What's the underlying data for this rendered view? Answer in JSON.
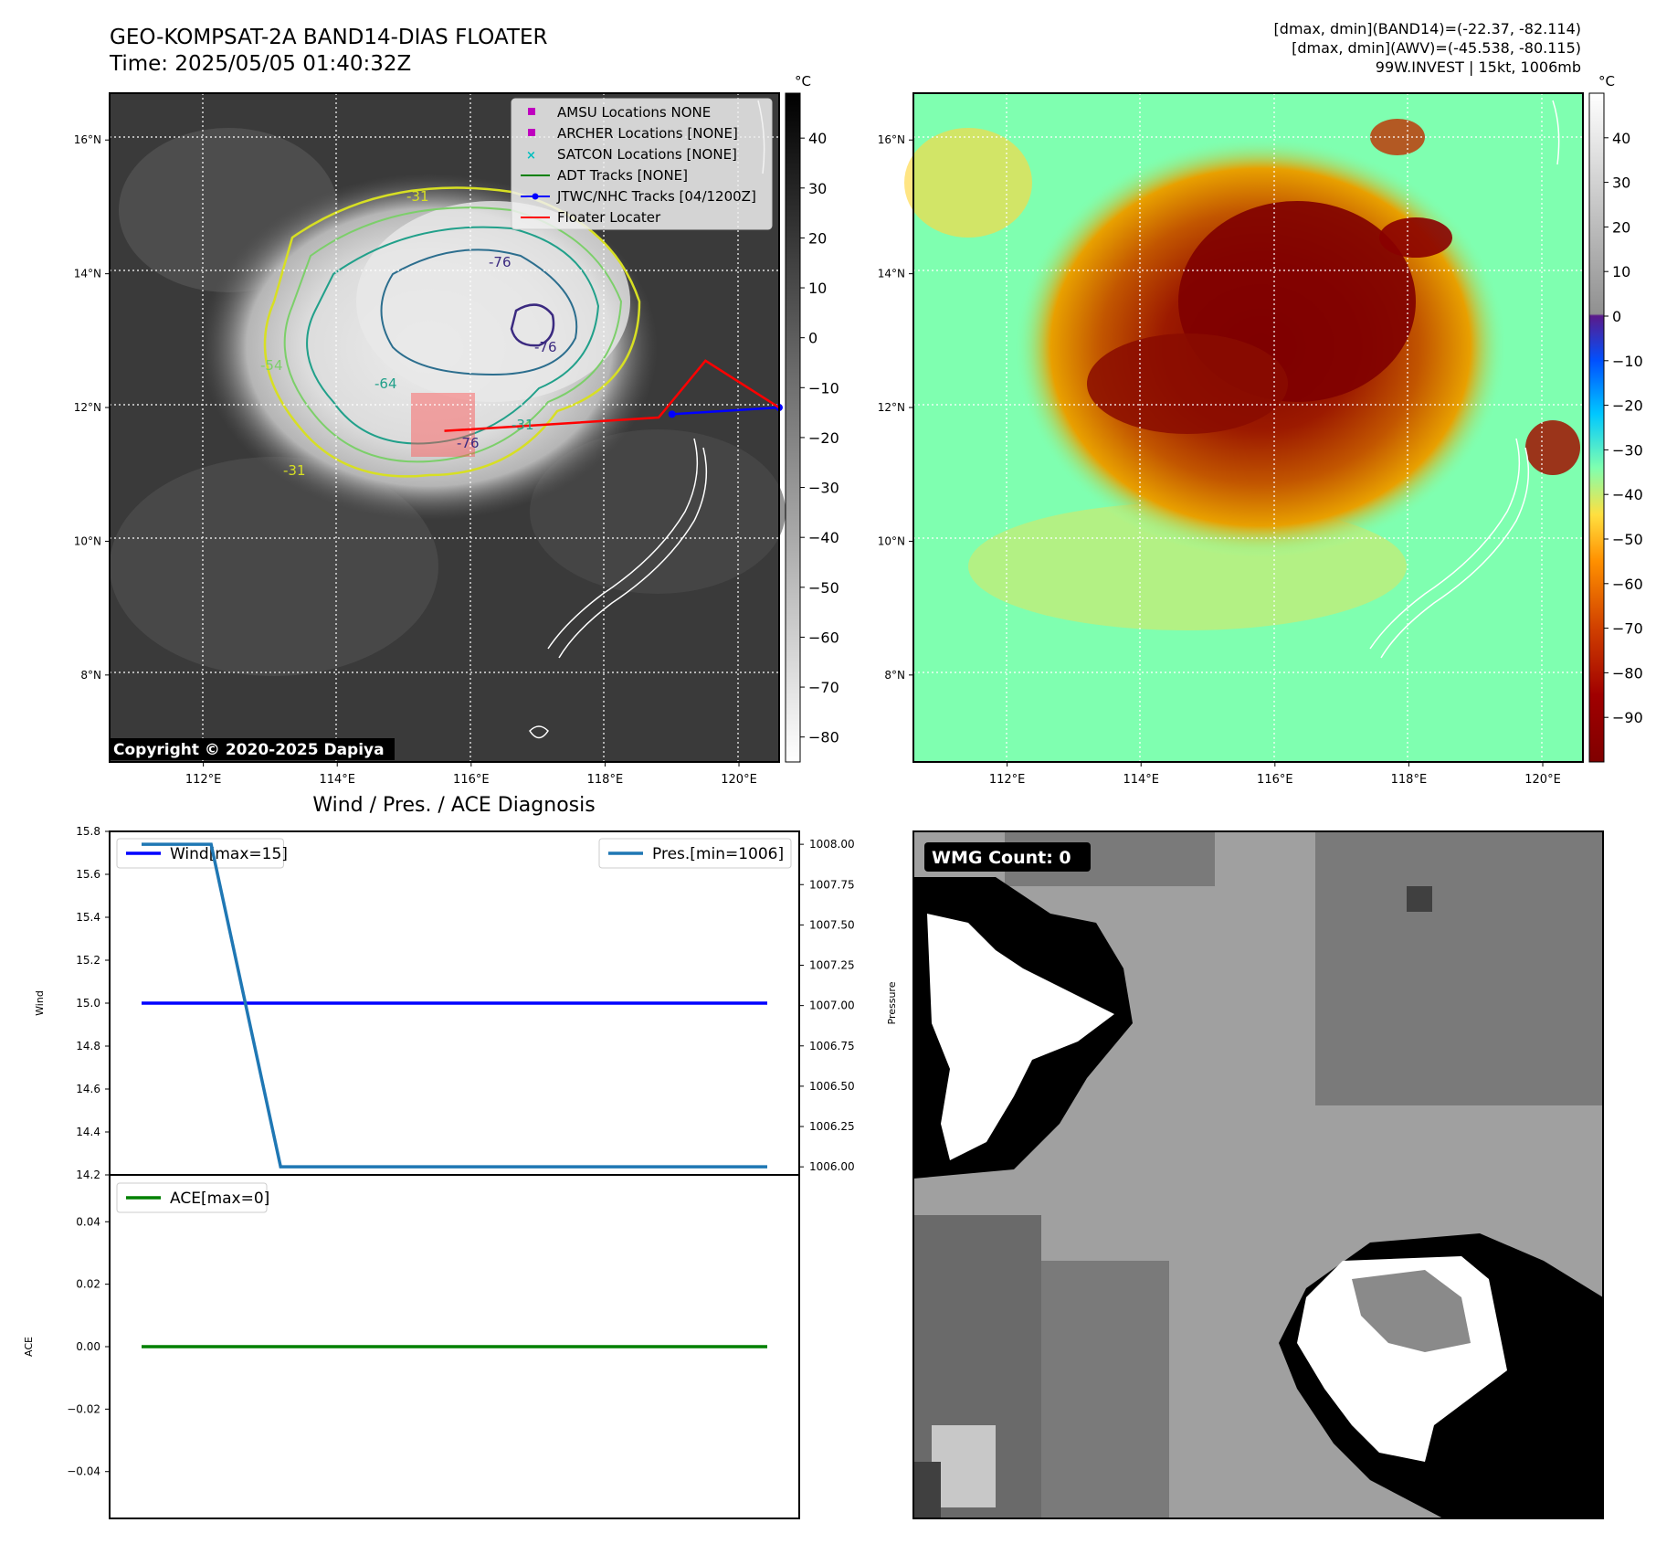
{
  "header": {
    "title": "GEO-KOMPSAT-2A BAND14-DIAS FLOATER",
    "time": "Time: 2025/05/05 01:40:32Z",
    "stats": [
      "[dmax, dmin](BAND14)=(-22.37, -82.114)",
      "[dmax, dmin](AWV)=(-45.538, -80.115)",
      "99W.INVEST | 15kt, 1006mb"
    ]
  },
  "map_panel": {
    "copyright": "Copyright © 2020-2025 Dapiya",
    "lon_ticks": [
      "112°E",
      "114°E",
      "116°E",
      "118°E",
      "120°E"
    ],
    "lat_ticks": [
      "16°N",
      "14°N",
      "12°N",
      "10°N",
      "8°N"
    ],
    "lon_values": [
      112,
      114,
      116,
      118,
      120
    ],
    "lat_values": [
      16,
      14,
      12,
      10,
      8
    ],
    "lon_range": [
      110.6,
      120.6
    ],
    "lat_range": [
      6.7,
      16.7
    ],
    "legend": [
      {
        "label": "AMSU Locations NONE",
        "marker": "square",
        "color": "#bf00bf"
      },
      {
        "label": "ARCHER Locations [NONE]",
        "marker": "square",
        "color": "#bf00bf"
      },
      {
        "label": "SATCON Locations [NONE]",
        "marker": "x",
        "color": "#00bfbf"
      },
      {
        "label": "ADT Tracks [NONE]",
        "marker": "line",
        "color": "#008000"
      },
      {
        "label": "JTWC/NHC Tracks [04/1200Z]",
        "marker": "line-dot",
        "color": "#0000ff"
      },
      {
        "label": "Floater Locater",
        "marker": "line",
        "color": "#ff0000"
      }
    ],
    "contour_labels": [
      "-76",
      "-76",
      "-64",
      "-54",
      "-31",
      "-31",
      "-31",
      "-76"
    ],
    "colorbar": {
      "unit": "°C",
      "ticks": [
        "40",
        "30",
        "20",
        "10",
        "0",
        "−10",
        "−20",
        "−30",
        "−40",
        "−50",
        "−60",
        "−70",
        "−80"
      ],
      "tick_values": [
        40,
        30,
        20,
        10,
        0,
        -10,
        -20,
        -30,
        -40,
        -50,
        -60,
        -70,
        -80
      ],
      "range": [
        -85,
        49
      ]
    },
    "jtwc_track": [
      [
        119.0,
        11.9
      ],
      [
        120.6,
        12.0
      ]
    ],
    "floater_track": [
      [
        115.6,
        11.65
      ],
      [
        118.8,
        11.85
      ],
      [
        119.5,
        12.7
      ],
      [
        120.6,
        12.0
      ]
    ]
  },
  "awv_panel": {
    "lon_ticks": [
      "112°E",
      "114°E",
      "116°E",
      "118°E",
      "120°E"
    ],
    "lat_ticks": [
      "16°N",
      "14°N",
      "12°N",
      "10°N",
      "8°N"
    ],
    "colorbar": {
      "unit": "°C",
      "ticks": [
        "40",
        "30",
        "20",
        "10",
        "0",
        "−10",
        "−20",
        "−30",
        "−40",
        "−50",
        "−60",
        "−70",
        "−80",
        "−90"
      ],
      "tick_values": [
        40,
        30,
        20,
        10,
        0,
        -10,
        -20,
        -30,
        -40,
        -50,
        -60,
        -70,
        -80,
        -90
      ],
      "range": [
        -100,
        50
      ]
    }
  },
  "chart_data": [
    {
      "type": "line",
      "title": "Wind / Pres. / ACE Diagnosis",
      "ylabel": "Wind",
      "ylim": [
        14.2,
        15.8
      ],
      "yticks": [
        "14.2",
        "14.4",
        "14.6",
        "14.8",
        "15.0",
        "15.2",
        "15.4",
        "15.6",
        "15.8"
      ],
      "ytick_values": [
        14.2,
        14.4,
        14.6,
        14.8,
        15.0,
        15.2,
        15.4,
        15.6,
        15.8
      ],
      "x": [
        0,
        1,
        2,
        3,
        4,
        5,
        6,
        7,
        8,
        9
      ],
      "series": [
        {
          "name": "Wind[max=15]",
          "color": "#0000ff",
          "values": [
            15,
            15,
            15,
            15,
            15,
            15,
            15,
            15,
            15,
            15
          ]
        }
      ],
      "legend": "upper left"
    },
    {
      "type": "line",
      "ylabel": "Pressure",
      "ylim": [
        1005.95,
        1008.08
      ],
      "yticks": [
        "1008.00",
        "1007.75",
        "1007.50",
        "1007.25",
        "1007.00",
        "1006.75",
        "1006.50",
        "1006.25",
        "1006.00"
      ],
      "ytick_values": [
        1008.0,
        1007.75,
        1007.5,
        1007.25,
        1007.0,
        1006.75,
        1006.5,
        1006.25,
        1006.0
      ],
      "x": [
        0,
        1,
        2,
        3,
        4,
        5,
        6,
        7,
        8,
        9
      ],
      "series": [
        {
          "name": "Pres.[min=1006]",
          "color": "#1f77b4",
          "values": [
            1008,
            1008,
            1006,
            1006,
            1006,
            1006,
            1006,
            1006,
            1006,
            1006
          ]
        }
      ],
      "legend": "upper right"
    },
    {
      "type": "line",
      "ylabel": "ACE",
      "ylim": [
        -0.055,
        0.055
      ],
      "yticks": [
        "0.04",
        "0.02",
        "0.00",
        "−0.02",
        "−0.04"
      ],
      "ytick_values": [
        0.04,
        0.02,
        0.0,
        -0.02,
        -0.04
      ],
      "x": [
        0,
        1,
        2,
        3,
        4,
        5,
        6,
        7,
        8,
        9
      ],
      "series": [
        {
          "name": "ACE[max=0]",
          "color": "#008000",
          "values": [
            0,
            0,
            0,
            0,
            0,
            0,
            0,
            0,
            0,
            0
          ]
        }
      ],
      "legend": "upper left"
    }
  ],
  "wmg_panel": {
    "count_label": "WMG Count: 0"
  }
}
